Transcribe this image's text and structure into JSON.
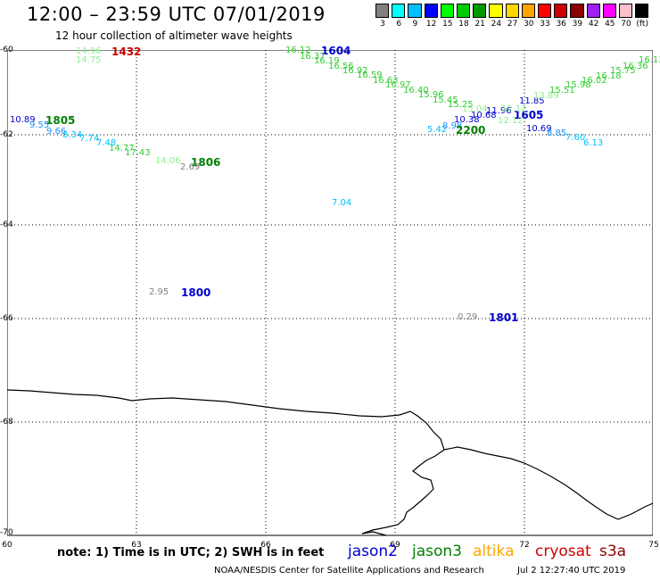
{
  "title": "12:00 – 23:59 UTC 07/01/2019",
  "subtitle": "12 hour collection of altimeter wave heights",
  "colorbar": {
    "colors": [
      "#808080",
      "#00ffff",
      "#00bfff",
      "#0000ff",
      "#00ff00",
      "#00cd00",
      "#009900",
      "#ffff00",
      "#ffd700",
      "#ffa500",
      "#ff0000",
      "#cd0000",
      "#8b0000",
      "#a020f0",
      "#ff00ff",
      "#ffc0cb",
      "#000000"
    ],
    "labels": [
      "3",
      "6",
      "9",
      "12",
      "15",
      "18",
      "21",
      "24",
      "27",
      "30",
      "33",
      "36",
      "39",
      "42",
      "45",
      "70",
      "(ft)"
    ]
  },
  "axes": {
    "lat_labels": [
      "-60",
      "-62",
      "-64",
      "-66",
      "-68",
      "-70"
    ],
    "lon_labels": [
      "60",
      "63",
      "66",
      "69",
      "72",
      "75"
    ]
  },
  "observations": [
    {
      "text": "14.96",
      "color": "#90ee90",
      "role": "swh"
    },
    {
      "text": "14.75",
      "color": "#90ee90",
      "role": "swh"
    },
    {
      "text": "1432",
      "color": "#cc0000",
      "role": "time"
    },
    {
      "text": "16.12",
      "color": "#32cd32",
      "role": "swh"
    },
    {
      "text": "1604",
      "color": "#0000cd",
      "role": "time"
    },
    {
      "text": "16.37",
      "color": "#32cd32",
      "role": "swh"
    },
    {
      "text": "16.19",
      "color": "#32cd32",
      "role": "swh"
    },
    {
      "text": "16.56",
      "color": "#32cd32",
      "role": "swh"
    },
    {
      "text": "16.92",
      "color": "#32cd32",
      "role": "swh"
    },
    {
      "text": "16.59",
      "color": "#32cd32",
      "role": "swh"
    },
    {
      "text": "16.63",
      "color": "#32cd32",
      "role": "swh"
    },
    {
      "text": "16.97",
      "color": "#32cd32",
      "role": "swh"
    },
    {
      "text": "16.40",
      "color": "#32cd32",
      "role": "swh"
    },
    {
      "text": "15.96",
      "color": "#32cd32",
      "role": "swh"
    },
    {
      "text": "15.45",
      "color": "#32cd32",
      "role": "swh"
    },
    {
      "text": "15.25",
      "color": "#32cd32",
      "role": "swh"
    },
    {
      "text": "15.04",
      "color": "#90ee90",
      "role": "swh"
    },
    {
      "text": "11.96",
      "color": "#0000cd",
      "role": "swh"
    },
    {
      "text": "10.68",
      "color": "#0000cd",
      "role": "swh"
    },
    {
      "text": "10.38",
      "color": "#0000cd",
      "role": "swh"
    },
    {
      "text": "8.98",
      "color": "#1e90ff",
      "role": "swh"
    },
    {
      "text": "5.42",
      "color": "#00bfff",
      "role": "swh"
    },
    {
      "text": "2200",
      "color": "#008000",
      "role": "time"
    },
    {
      "text": "1605",
      "color": "#0000cd",
      "role": "time"
    },
    {
      "text": "11.85",
      "color": "#0000cd",
      "role": "swh"
    },
    {
      "text": "12.12",
      "color": "#90ee90",
      "role": "swh"
    },
    {
      "text": "12.12",
      "color": "#90ee90",
      "role": "swh"
    },
    {
      "text": "13.89",
      "color": "#90ee90",
      "role": "swh"
    },
    {
      "text": "15.51",
      "color": "#32cd32",
      "role": "swh"
    },
    {
      "text": "15.98",
      "color": "#32cd32",
      "role": "swh"
    },
    {
      "text": "16.02",
      "color": "#32cd32",
      "role": "swh"
    },
    {
      "text": "16.18",
      "color": "#32cd32",
      "role": "swh"
    },
    {
      "text": "15.75",
      "color": "#32cd32",
      "role": "swh"
    },
    {
      "text": "16.36",
      "color": "#32cd32",
      "role": "swh"
    },
    {
      "text": "16.13",
      "color": "#32cd32",
      "role": "swh"
    },
    {
      "text": "10.69",
      "color": "#0000cd",
      "role": "swh"
    },
    {
      "text": "8.85",
      "color": "#1e90ff",
      "role": "swh"
    },
    {
      "text": "7.60",
      "color": "#00bfff",
      "role": "swh"
    },
    {
      "text": "6.13",
      "color": "#00bfff",
      "role": "swh"
    },
    {
      "text": "10.89",
      "color": "#0000cd",
      "role": "swh"
    },
    {
      "text": "1805",
      "color": "#008000",
      "role": "time"
    },
    {
      "text": "9.55",
      "color": "#1e90ff",
      "role": "swh"
    },
    {
      "text": "9.66",
      "color": "#1e90ff",
      "role": "swh"
    },
    {
      "text": "8.34",
      "color": "#00bfff",
      "role": "swh"
    },
    {
      "text": "7.74",
      "color": "#00bfff",
      "role": "swh"
    },
    {
      "text": "7.48",
      "color": "#00bfff",
      "role": "swh"
    },
    {
      "text": "14.77",
      "color": "#32cd32",
      "role": "swh"
    },
    {
      "text": "17.43",
      "color": "#32cd32",
      "role": "swh"
    },
    {
      "text": "14.06",
      "color": "#90ee90",
      "role": "swh"
    },
    {
      "text": "1806",
      "color": "#008000",
      "role": "time"
    },
    {
      "text": "2.69",
      "color": "#808080",
      "role": "swh"
    },
    {
      "text": "7.04",
      "color": "#00bfff",
      "role": "swh"
    },
    {
      "text": "2.95",
      "color": "#808080",
      "role": "swh"
    },
    {
      "text": "1800",
      "color": "#0000cd",
      "role": "time"
    },
    {
      "text": "0.29",
      "color": "#808080",
      "role": "swh"
    },
    {
      "text": "1801",
      "color": "#0000cd",
      "role": "time"
    }
  ],
  "footer": {
    "note": "note: 1) Time is in UTC; 2) SWH is in feet",
    "satellites": [
      {
        "name": "jason2",
        "color": "#0000cd"
      },
      {
        "name": "jason3",
        "color": "#008000"
      },
      {
        "name": "altika",
        "color": "#ffa500"
      },
      {
        "name": "cryosat",
        "color": "#cc0000"
      },
      {
        "name": "s3a",
        "color": "#8b0000"
      }
    ],
    "credit": "NOAA/NESDIS Center for Satellite Applications and Research",
    "timestamp": "Jul  2 12:27:40 UTC 2019"
  }
}
